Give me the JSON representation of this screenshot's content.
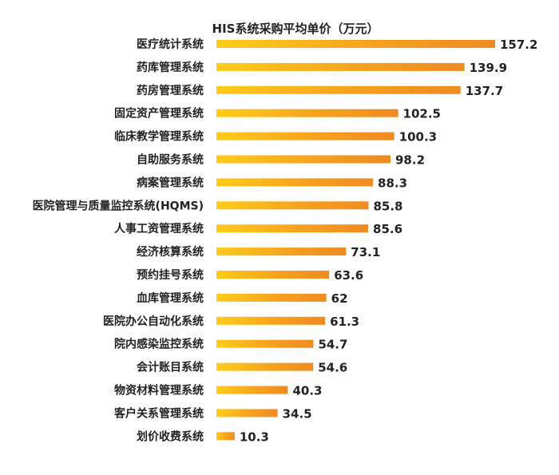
{
  "chart_data": {
    "type": "bar",
    "orientation": "horizontal",
    "title": "HIS系统采购平均单价（万元）",
    "categories": [
      "医疗统计系统",
      "药库管理系统",
      "药房管理系统",
      "固定资产管理系统",
      "临床教学管理系统",
      "自助服务系统",
      "病案管理系统",
      "医院管理与质量监控系统(HQMS)",
      "人事工资管理系统",
      "经济核算系统",
      "预约挂号系统",
      "血库管理系统",
      "医院办公自动化系统",
      "院内感染监控系统",
      "会计账目系统",
      "物资材料管理系统",
      "客户关系管理系统",
      "划价收费系统"
    ],
    "values": [
      157.2,
      139.9,
      137.7,
      102.5,
      100.3,
      98.2,
      88.3,
      85.8,
      85.6,
      73.1,
      63.6,
      62,
      61.3,
      54.7,
      54.6,
      40.3,
      34.5,
      10.3
    ],
    "value_labels": [
      "157.2",
      "139.9",
      "137.7",
      "102.5",
      "100.3",
      "98.2",
      "88.3",
      "85.8",
      "85.6",
      "73.1",
      "63.6",
      "62",
      "61.3",
      "54.7",
      "54.6",
      "40.3",
      "34.5",
      "10.3"
    ],
    "xlim": [
      0,
      157.2
    ],
    "grid": false,
    "legend": "none",
    "colors": {
      "gradient_start": "#FFCC1A",
      "gradient_mid": "#F7A21E",
      "gradient_end": "#EE8A22"
    }
  }
}
